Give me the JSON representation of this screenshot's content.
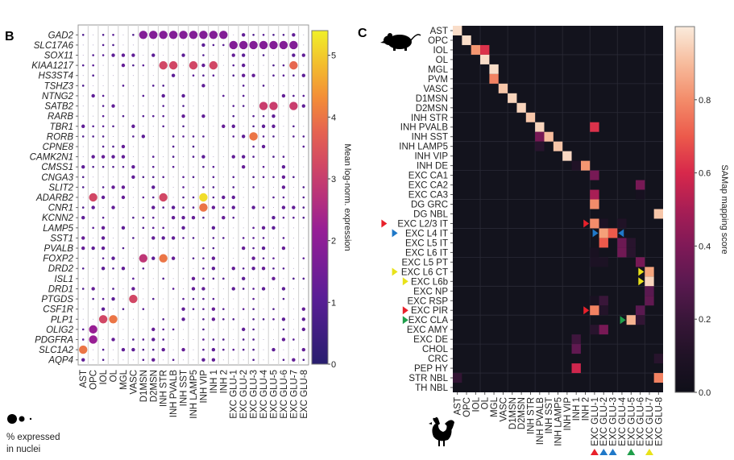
{
  "panels": {
    "b_label": "B",
    "c_label": "C"
  },
  "chart_data": [
    {
      "type": "scatter",
      "subtype": "dotplot",
      "panel": "B",
      "title": "",
      "genes": [
        "GAD2",
        "SLC17A6",
        "SOX11",
        "KIAA1217",
        "HS3ST4",
        "TSHZ3",
        "NTNG2",
        "SATB2",
        "RARB",
        "TBR1",
        "RORB",
        "CPNE8",
        "CAMK2N1",
        "CMSS1",
        "CNGA3",
        "SLIT2",
        "ADARB2",
        "CNR1",
        "KCNN2",
        "LAMP5",
        "SST1",
        "PVALB",
        "FOXP2",
        "DRD2",
        "ISL1",
        "DRD1",
        "PTGDS",
        "CSF1R",
        "PLP1",
        "OLIG2",
        "PDGFRA",
        "SLC1A2",
        "AQP4"
      ],
      "cell_types": [
        "AST",
        "OPC",
        "IOL",
        "OL",
        "MGL",
        "VASC",
        "D1MSN",
        "D2MSN",
        "INH STR",
        "INH PVALB",
        "INH SST",
        "INH LAMP5",
        "INH VIP",
        "INH 1",
        "INH 2",
        "EXC GLU-1",
        "EXC GLU-2",
        "EXC GLU-3",
        "EXC GLU-4",
        "EXC GLU-5",
        "EXC GLU-6",
        "EXC GLU-7",
        "EXC GLU-8"
      ],
      "column_count": 23,
      "notable_points": [
        {
          "gene": "GAD2",
          "cell_types": [
            "D1MSN",
            "D2MSN",
            "INH STR",
            "INH PVALB",
            "INH SST",
            "INH LAMP5",
            "INH VIP",
            "INH 1",
            "INH 2"
          ],
          "expr": 1.8,
          "pct": "high"
        },
        {
          "gene": "SLC17A6",
          "cell_types": [
            "EXC GLU-1",
            "EXC GLU-2",
            "EXC GLU-3",
            "EXC GLU-4",
            "EXC GLU-5",
            "EXC GLU-6",
            "EXC GLU-7"
          ],
          "expr": 1.8,
          "pct": "high"
        },
        {
          "gene": "KIAA1217",
          "cell_types": [
            "INH STR",
            "INH PVALB",
            "INH LAMP5",
            "INH 1"
          ],
          "expr": 3.2,
          "pct": "high"
        },
        {
          "gene": "KIAA1217",
          "cell_types": [
            "EXC GLU-7"
          ],
          "expr": 3.8,
          "pct": "high"
        },
        {
          "gene": "SATB2",
          "cell_types": [
            "EXC GLU-4",
            "EXC GLU-5",
            "EXC GLU-7"
          ],
          "expr": 3.0,
          "pct": "high"
        },
        {
          "gene": "RORB",
          "cell_types": [
            "EXC GLU-3"
          ],
          "expr": 4.0,
          "pct": "high"
        },
        {
          "gene": "ADARB2",
          "cell_types": [
            "OPC",
            "INH STR"
          ],
          "expr": 3.2,
          "pct": "high"
        },
        {
          "gene": "ADARB2",
          "cell_types": [
            "INH VIP"
          ],
          "expr": 5.2,
          "pct": "high"
        },
        {
          "gene": "CNR1",
          "cell_types": [
            "INH VIP"
          ],
          "expr": 4.0,
          "pct": "high"
        },
        {
          "gene": "FOXP2",
          "cell_types": [
            "D1MSN"
          ],
          "expr": 2.8,
          "pct": "high"
        },
        {
          "gene": "FOXP2",
          "cell_types": [
            "INH STR"
          ],
          "expr": 4.0,
          "pct": "high"
        },
        {
          "gene": "PTGDS",
          "cell_types": [
            "VASC"
          ],
          "expr": 3.2,
          "pct": "high"
        },
        {
          "gene": "PLP1",
          "cell_types": [
            "IOL"
          ],
          "expr": 3.2,
          "pct": "high"
        },
        {
          "gene": "PLP1",
          "cell_types": [
            "OL"
          ],
          "expr": 4.0,
          "pct": "high"
        },
        {
          "gene": "OLIG2",
          "cell_types": [
            "OPC"
          ],
          "expr": 2.2,
          "pct": "high"
        },
        {
          "gene": "PDGFRA",
          "cell_types": [
            "OPC"
          ],
          "expr": 2.2,
          "pct": "high"
        },
        {
          "gene": "SLC1A2",
          "cell_types": [
            "AST"
          ],
          "expr": 4.0,
          "pct": "high"
        }
      ],
      "colorbar": {
        "label": "Mean log-norm. expression",
        "ticks": [
          "0",
          "1",
          "2",
          "3",
          "4",
          "5"
        ],
        "range": [
          0,
          5.4
        ],
        "colormap": "plasma"
      },
      "size_legend": {
        "label_line1": "% expressed",
        "label_line2": "in nuclei"
      }
    },
    {
      "type": "heatmap",
      "panel": "C",
      "title": "",
      "rows_species": "mouse",
      "cols_species": "chicken",
      "rows": [
        "AST",
        "OPC",
        "IOL",
        "OL",
        "MGL",
        "PVM",
        "VASC",
        "D1MSN",
        "D2MSN",
        "INH STR",
        "INH PVALB",
        "INH SST",
        "INH LAMP5",
        "INH VIP",
        "INH DE",
        "EXC CA1",
        "EXC CA2",
        "EXC CA3",
        "DG GRC",
        "DG NBL",
        "EXC L2/3 IT",
        "EXC L4 IT",
        "EXC L5 IT",
        "EXC L6 IT",
        "EXC L5 PT",
        "EXC L6 CT",
        "EXC L6b",
        "EXC NP",
        "EXC RSP",
        "EXC PIR",
        "EXC CLA",
        "EXC AMY",
        "EXC DE",
        "CHOL",
        "CRC",
        "PEP HY",
        "STR NBL",
        "TH NBL"
      ],
      "cols": [
        "AST",
        "OPC",
        "IOL",
        "OL",
        "MGL",
        "VASC",
        "D1MSN",
        "D2MSN",
        "INH STR",
        "INH PVALB",
        "INH SST",
        "INH LAMP5",
        "INH VIP",
        "INH 1",
        "INH 2",
        "EXC GLU-1",
        "EXC GLU-2",
        "EXC GLU-3",
        "EXC GLU-4",
        "EXC GLU-5",
        "EXC GLU-6",
        "EXC GLU-7",
        "EXC GLU-8"
      ],
      "row_markers": [
        {
          "row": "EXC L2/3 IT",
          "color": "#e8212b"
        },
        {
          "row": "EXC L4 IT",
          "color": "#1f78c8"
        },
        {
          "row": "EXC L6 CT",
          "color": "#e8e21a"
        },
        {
          "row": "EXC L6b",
          "color": "#e8e21a"
        },
        {
          "row": "EXC PIR",
          "color": "#e8212b"
        },
        {
          "row": "EXC CLA",
          "color": "#1f9e4a"
        }
      ],
      "col_markers": [
        {
          "col": "EXC GLU-1",
          "color": "#e8212b"
        },
        {
          "col": "EXC GLU-2",
          "color": "#1f78c8"
        },
        {
          "col": "EXC GLU-3",
          "color": "#1f78c8"
        },
        {
          "col": "EXC GLU-5",
          "color": "#1f9e4a"
        },
        {
          "col": "EXC GLU-7",
          "color": "#e8e21a"
        }
      ],
      "values": [
        {
          "row": "AST",
          "col": "AST",
          "v": 0.97
        },
        {
          "row": "OPC",
          "col": "OPC",
          "v": 0.97
        },
        {
          "row": "IOL",
          "col": "IOL",
          "v": 0.82
        },
        {
          "row": "IOL",
          "col": "OL",
          "v": 0.62
        },
        {
          "row": "OL",
          "col": "OL",
          "v": 0.97
        },
        {
          "row": "MGL",
          "col": "MGL",
          "v": 0.97
        },
        {
          "row": "PVM",
          "col": "MGL",
          "v": 0.78
        },
        {
          "row": "VASC",
          "col": "VASC",
          "v": 0.92
        },
        {
          "row": "D1MSN",
          "col": "D1MSN",
          "v": 0.95
        },
        {
          "row": "D2MSN",
          "col": "D2MSN",
          "v": 0.95
        },
        {
          "row": "INH STR",
          "col": "INH STR",
          "v": 0.92
        },
        {
          "row": "INH PVALB",
          "col": "INH PVALB",
          "v": 0.95
        },
        {
          "row": "INH PVALB",
          "col": "EXC GLU-1",
          "v": 0.62
        },
        {
          "row": "INH SST",
          "col": "INH PVALB",
          "v": 0.38
        },
        {
          "row": "INH SST",
          "col": "INH SST",
          "v": 0.9
        },
        {
          "row": "INH LAMP5",
          "col": "INH PVALB",
          "v": 0.15
        },
        {
          "row": "INH LAMP5",
          "col": "INH LAMP5",
          "v": 0.92
        },
        {
          "row": "INH VIP",
          "col": "INH VIP",
          "v": 0.96
        },
        {
          "row": "INH DE",
          "col": "INH 2",
          "v": 0.82
        },
        {
          "row": "INH DE",
          "col": "INH 1",
          "v": 0.1
        },
        {
          "row": "EXC CA1",
          "col": "EXC GLU-1",
          "v": 0.38
        },
        {
          "row": "EXC CA2",
          "col": "EXC GLU-6",
          "v": 0.38
        },
        {
          "row": "EXC CA3",
          "col": "EXC GLU-1",
          "v": 0.5
        },
        {
          "row": "EXC CA3",
          "col": "EXC GLU-6",
          "v": 0.05
        },
        {
          "row": "DG GRC",
          "col": "EXC GLU-1",
          "v": 0.8
        },
        {
          "row": "DG NBL",
          "col": "EXC GLU-8",
          "v": 0.92
        },
        {
          "row": "EXC L2/3 IT",
          "col": "EXC GLU-1",
          "v": 0.8
        },
        {
          "row": "EXC L2/3 IT",
          "col": "EXC GLU-2",
          "v": 0.08
        },
        {
          "row": "EXC L2/3 IT",
          "col": "EXC GLU-4",
          "v": 0.1
        },
        {
          "row": "EXC L4 IT",
          "col": "EXC GLU-2",
          "v": 0.84
        },
        {
          "row": "EXC L4 IT",
          "col": "EXC GLU-3",
          "v": 0.7
        },
        {
          "row": "EXC L5 IT",
          "col": "EXC GLU-2",
          "v": 0.7
        },
        {
          "row": "EXC L5 IT",
          "col": "EXC GLU-4",
          "v": 0.35
        },
        {
          "row": "EXC L5 IT",
          "col": "EXC GLU-5",
          "v": 0.15
        },
        {
          "row": "EXC L6 IT",
          "col": "EXC GLU-4",
          "v": 0.36
        },
        {
          "row": "EXC L6 IT",
          "col": "EXC GLU-5",
          "v": 0.15
        },
        {
          "row": "EXC L6 IT",
          "col": "EXC GLU-1",
          "v": 0.06
        },
        {
          "row": "EXC L5 PT",
          "col": "EXC GLU-6",
          "v": 0.38
        },
        {
          "row": "EXC L5 PT",
          "col": "EXC GLU-1",
          "v": 0.08
        },
        {
          "row": "EXC L5 PT",
          "col": "EXC GLU-2",
          "v": 0.08
        },
        {
          "row": "EXC L6 CT",
          "col": "EXC GLU-7",
          "v": 0.85
        },
        {
          "row": "EXC L6b",
          "col": "EXC GLU-7",
          "v": 0.95
        },
        {
          "row": "EXC NP",
          "col": "EXC GLU-7",
          "v": 0.3
        },
        {
          "row": "EXC RSP",
          "col": "EXC GLU-1",
          "v": 0.06
        },
        {
          "row": "EXC RSP",
          "col": "EXC GLU-2",
          "v": 0.2
        },
        {
          "row": "EXC RSP",
          "col": "EXC GLU-7",
          "v": 0.32
        },
        {
          "row": "EXC PIR",
          "col": "EXC GLU-1",
          "v": 0.78
        },
        {
          "row": "EXC PIR",
          "col": "EXC GLU-2",
          "v": 0.12
        },
        {
          "row": "EXC PIR",
          "col": "EXC GLU-6",
          "v": 0.3
        },
        {
          "row": "EXC CLA",
          "col": "EXC GLU-5",
          "v": 0.88
        },
        {
          "row": "EXC CLA",
          "col": "EXC GLU-6",
          "v": 0.18
        },
        {
          "row": "EXC AMY",
          "col": "EXC GLU-1",
          "v": 0.15
        },
        {
          "row": "EXC AMY",
          "col": "EXC GLU-2",
          "v": 0.38
        },
        {
          "row": "EXC DE",
          "col": "INH 1",
          "v": 0.22
        },
        {
          "row": "CHOL",
          "col": "INH 1",
          "v": 0.32
        },
        {
          "row": "CRC",
          "col": "EXC GLU-8",
          "v": 0.15
        },
        {
          "row": "PEP HY",
          "col": "INH 1",
          "v": 0.58
        },
        {
          "row": "STR NBL",
          "col": "AST",
          "v": 0.18
        },
        {
          "row": "STR NBL",
          "col": "EXC GLU-8",
          "v": 0.78
        }
      ],
      "colorbar": {
        "label": "SAMap mapping score",
        "ticks": [
          "0.0",
          "0.2",
          "0.4",
          "0.6",
          "0.8"
        ],
        "range": [
          0,
          1.0
        ],
        "colormap": "rocket"
      }
    }
  ]
}
